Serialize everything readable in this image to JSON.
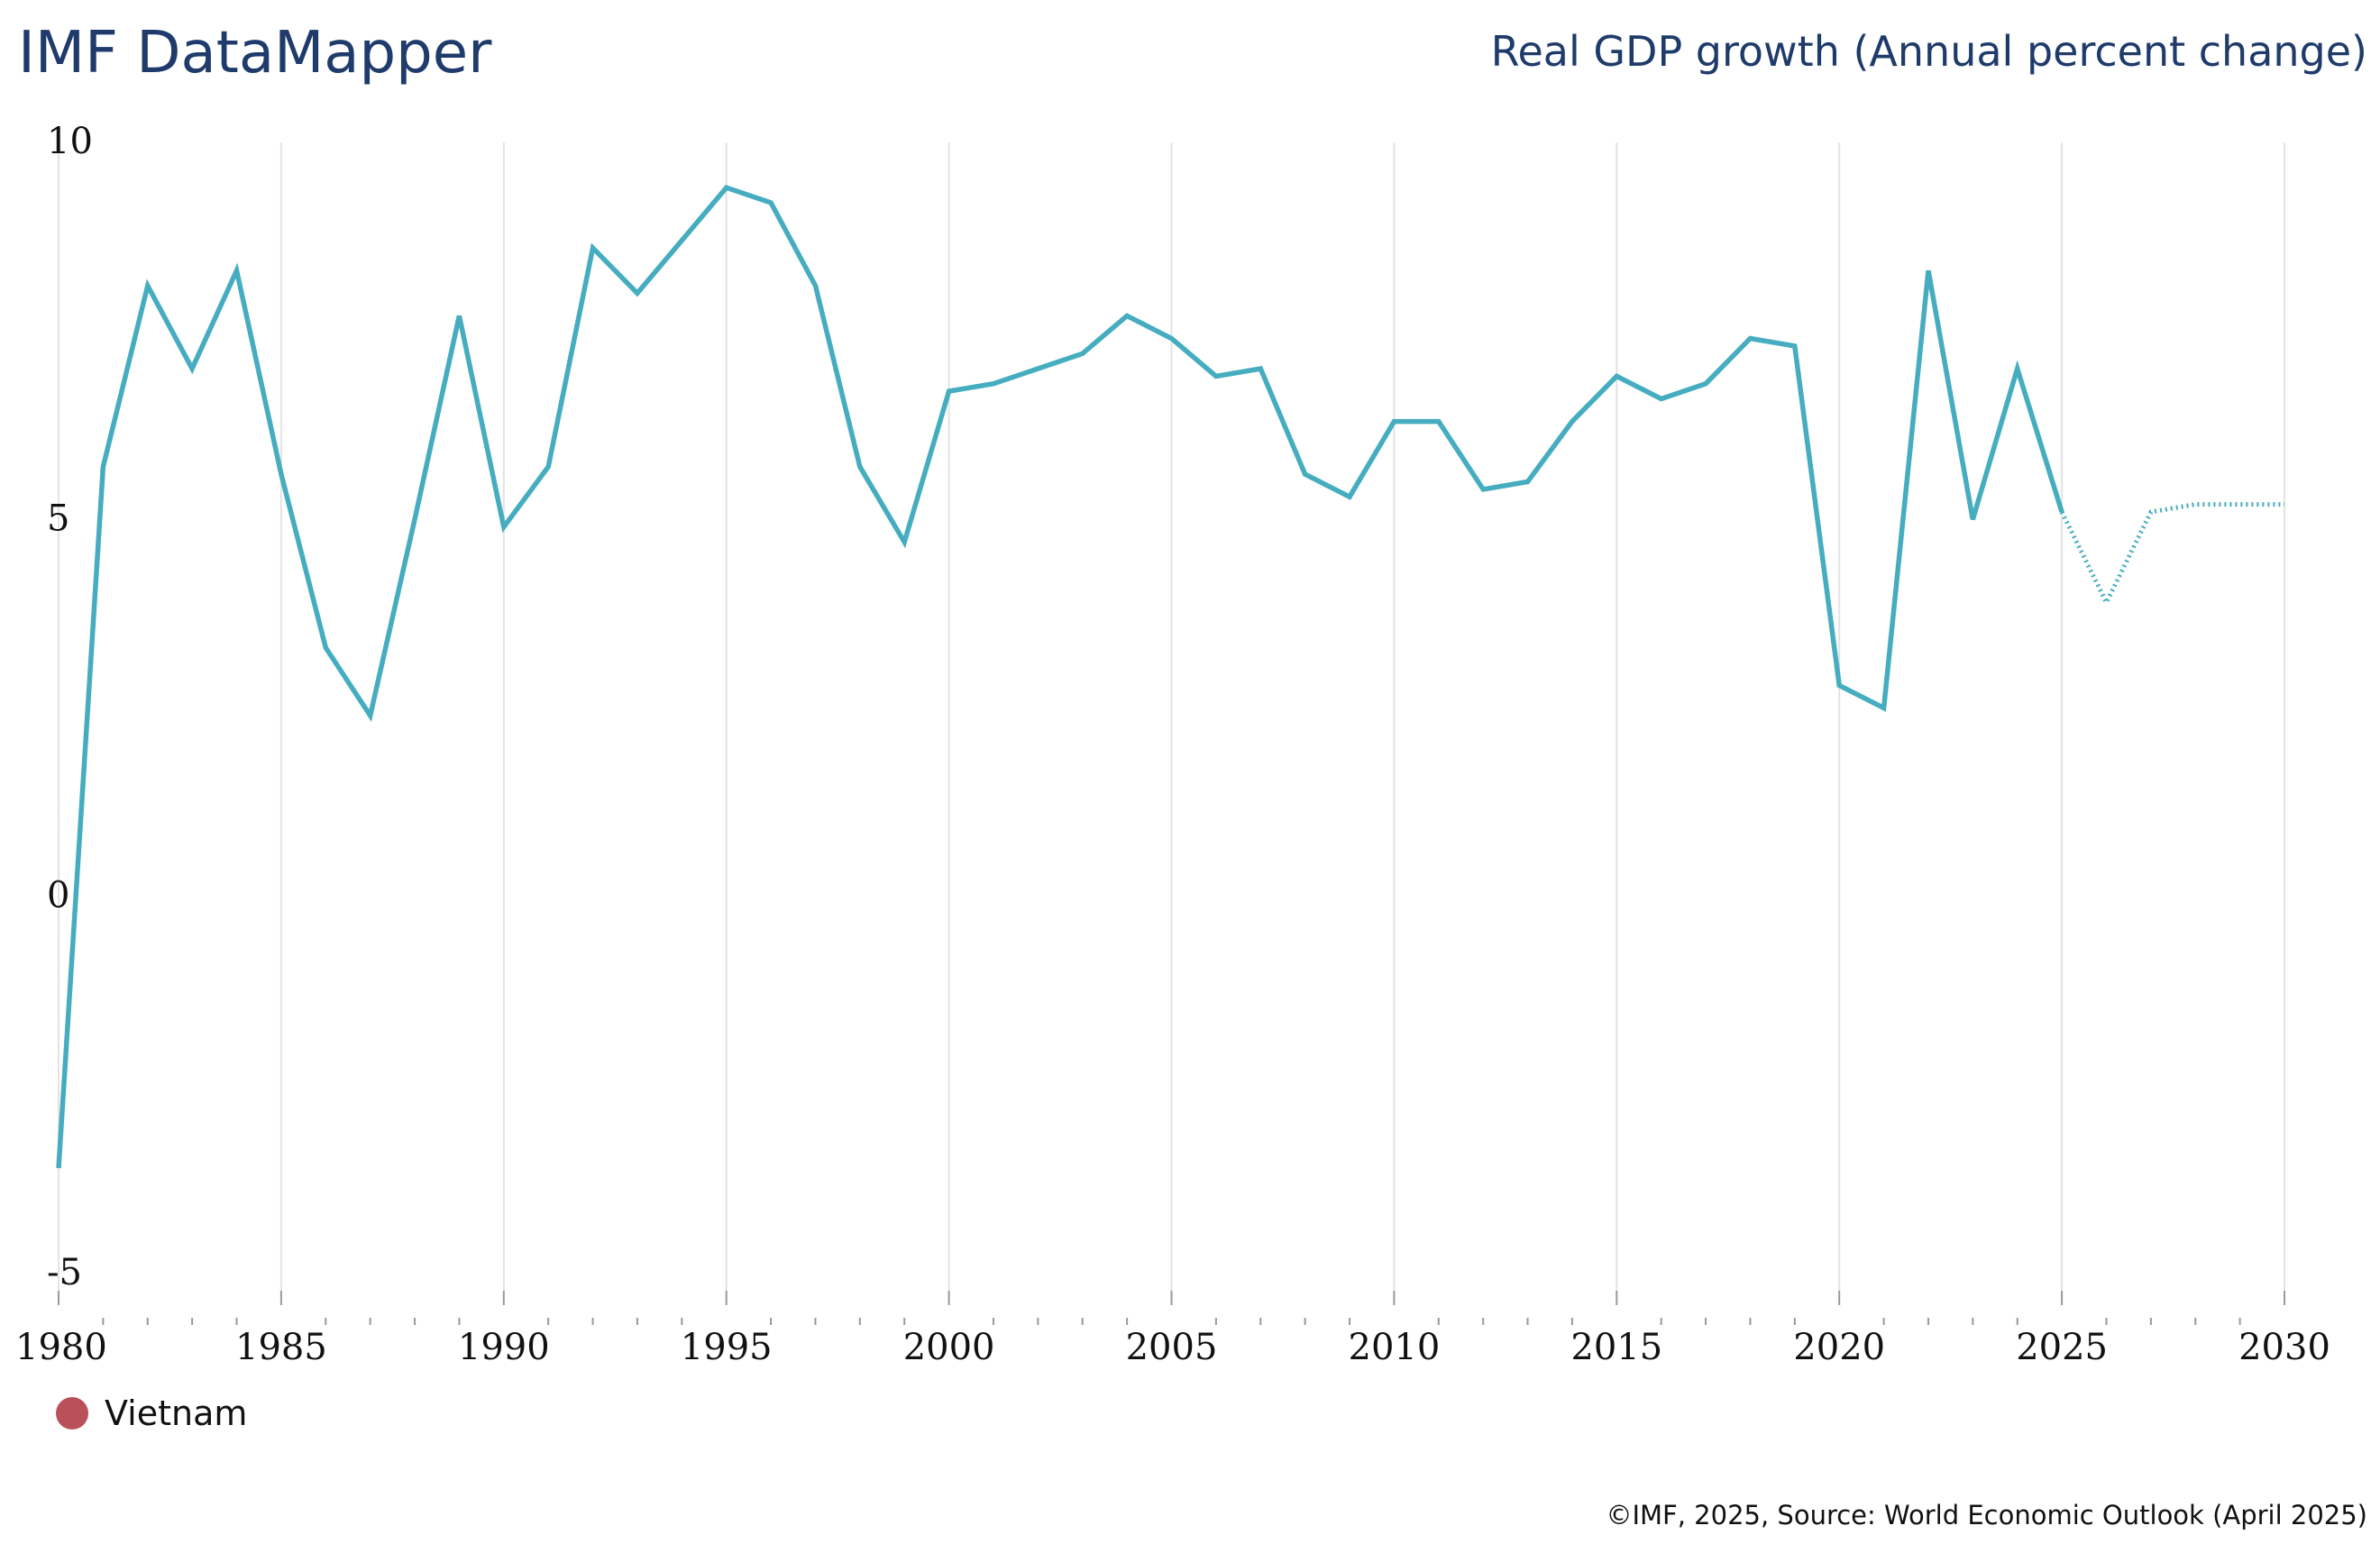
{
  "header": {
    "brand": "IMF DataMapper",
    "indicator_title": "Real GDP growth (Annual percent change)"
  },
  "footer": {
    "credit": "©IMF, 2025, Source: World Economic Outlook (April 2025)"
  },
  "colors": {
    "series_line": "#45adbf",
    "legend_marker": "#b9505a",
    "gridline": "#e3e3e3",
    "title": "#1f3b6b"
  },
  "chart_data": {
    "type": "line",
    "title": "Real GDP growth (Annual percent change)",
    "xlabel": "",
    "ylabel": "",
    "ylim": [
      -5,
      10
    ],
    "xlim": [
      1980,
      2030
    ],
    "y_ticks": [
      "10",
      "5",
      "0",
      "-5"
    ],
    "x_ticks": [
      "1980",
      "1985",
      "1990",
      "1995",
      "2000",
      "2005",
      "2010",
      "2015",
      "2020",
      "2025",
      "2030"
    ],
    "grid": "vertical",
    "legend_position": "bottom-left",
    "projection_start_year": 2025,
    "series": [
      {
        "name": "Vietnam",
        "x": [
          1980,
          1981,
          1982,
          1983,
          1984,
          1985,
          1986,
          1987,
          1988,
          1989,
          1990,
          1991,
          1992,
          1993,
          1994,
          1995,
          1996,
          1997,
          1998,
          1999,
          2000,
          2001,
          2002,
          2003,
          2004,
          2005,
          2006,
          2007,
          2008,
          2009,
          2010,
          2011,
          2012,
          2013,
          2014,
          2015,
          2016,
          2017,
          2018,
          2019,
          2020,
          2021,
          2022,
          2023,
          2024,
          2025,
          2026,
          2027,
          2028,
          2029,
          2030
        ],
        "values": [
          -3.6,
          5.7,
          8.1,
          7.0,
          8.3,
          5.6,
          3.3,
          2.4,
          5.0,
          7.7,
          4.9,
          5.7,
          8.6,
          8.0,
          8.7,
          9.4,
          9.2,
          8.1,
          5.7,
          4.7,
          6.7,
          6.8,
          7.0,
          7.2,
          7.7,
          7.4,
          6.9,
          7.0,
          5.6,
          5.3,
          6.3,
          6.3,
          5.4,
          5.5,
          6.3,
          6.9,
          6.6,
          6.8,
          7.4,
          7.3,
          2.8,
          2.5,
          8.3,
          5.0,
          7.0,
          5.1,
          3.9,
          5.1,
          5.2,
          5.2,
          5.2
        ]
      }
    ]
  }
}
